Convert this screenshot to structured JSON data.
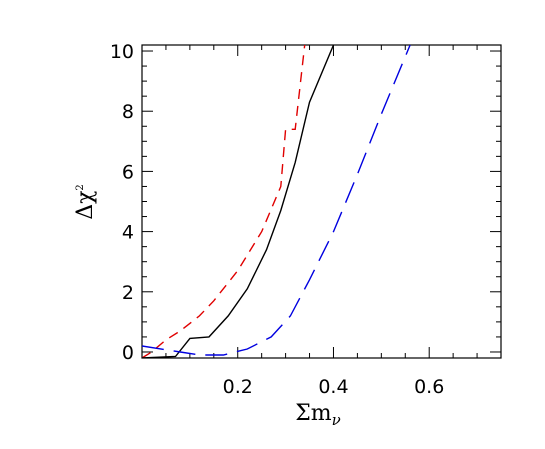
{
  "chart_data": {
    "type": "line",
    "title": "",
    "xlabel": "Σm",
    "xlabel_subscript": "ν",
    "ylabel": "Δχ",
    "ylabel_superscript": "2",
    "xlim": [
      0.0,
      0.75
    ],
    "ylim": [
      -0.2,
      10.2
    ],
    "xticks": [
      0.2,
      0.4,
      0.6
    ],
    "xtick_labels": [
      "0.2",
      "0.4",
      "0.6"
    ],
    "yticks": [
      0,
      2,
      4,
      6,
      8,
      10
    ],
    "ytick_labels": [
      "0",
      "2",
      "4",
      "6",
      "8",
      "10"
    ],
    "grid": false,
    "legend": "none",
    "series": [
      {
        "color": "#e00000",
        "dash": "short-dash",
        "points": [
          [
            0.0,
            -0.2
          ],
          [
            0.02,
            0.0
          ],
          [
            0.05,
            0.4
          ],
          [
            0.08,
            0.7
          ],
          [
            0.12,
            1.2
          ],
          [
            0.15,
            1.7
          ],
          [
            0.2,
            2.7
          ],
          [
            0.25,
            4.0
          ],
          [
            0.29,
            5.5
          ],
          [
            0.3,
            7.4
          ],
          [
            0.32,
            7.4
          ],
          [
            0.34,
            10.2
          ]
        ]
      },
      {
        "color": "#000000",
        "dash": "solid",
        "points": [
          [
            0.0,
            -0.2
          ],
          [
            0.07,
            -0.15
          ],
          [
            0.1,
            0.45
          ],
          [
            0.14,
            0.5
          ],
          [
            0.18,
            1.2
          ],
          [
            0.22,
            2.1
          ],
          [
            0.26,
            3.4
          ],
          [
            0.29,
            4.7
          ],
          [
            0.32,
            6.3
          ],
          [
            0.35,
            8.3
          ],
          [
            0.4,
            10.2
          ]
        ]
      },
      {
        "color": "#0000e0",
        "dash": "long-dash",
        "points": [
          [
            0.0,
            0.2
          ],
          [
            0.08,
            0.0
          ],
          [
            0.12,
            -0.1
          ],
          [
            0.17,
            -0.1
          ],
          [
            0.22,
            0.1
          ],
          [
            0.27,
            0.5
          ],
          [
            0.31,
            1.2
          ],
          [
            0.35,
            2.4
          ],
          [
            0.4,
            4.0
          ],
          [
            0.45,
            5.9
          ],
          [
            0.5,
            7.9
          ],
          [
            0.56,
            10.2
          ]
        ]
      }
    ]
  }
}
